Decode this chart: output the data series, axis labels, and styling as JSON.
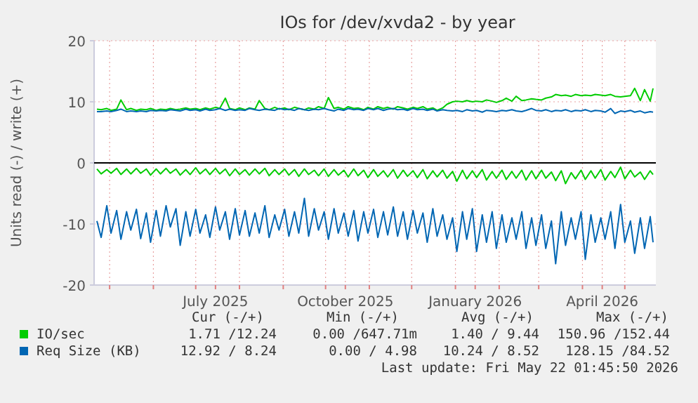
{
  "chart_data": {
    "type": "line",
    "title": "IOs for /dev/xvda2 - by year",
    "ylabel": "Units read (-) / write (+)",
    "x": [
      "2025-04-22",
      "2025-04-25",
      "2025-04-29",
      "2025-05-02",
      "2025-05-06",
      "2025-05-09",
      "2025-05-13",
      "2025-05-16",
      "2025-05-20",
      "2025-05-23",
      "2025-05-27",
      "2025-05-30",
      "2025-06-03",
      "2025-06-06",
      "2025-06-10",
      "2025-06-13",
      "2025-06-17",
      "2025-06-20",
      "2025-06-24",
      "2025-06-27",
      "2025-07-01",
      "2025-07-04",
      "2025-07-08",
      "2025-07-11",
      "2025-07-15",
      "2025-07-18",
      "2025-07-22",
      "2025-07-25",
      "2025-07-29",
      "2025-08-01",
      "2025-08-05",
      "2025-08-08",
      "2025-08-12",
      "2025-08-15",
      "2025-08-19",
      "2025-08-22",
      "2025-08-26",
      "2025-08-29",
      "2025-09-02",
      "2025-09-05",
      "2025-09-09",
      "2025-09-12",
      "2025-09-16",
      "2025-09-19",
      "2025-09-23",
      "2025-09-26",
      "2025-09-30",
      "2025-10-03",
      "2025-10-07",
      "2025-10-10",
      "2025-10-14",
      "2025-10-17",
      "2025-10-21",
      "2025-10-24",
      "2025-10-28",
      "2025-10-31",
      "2025-11-04",
      "2025-11-07",
      "2025-11-11",
      "2025-11-14",
      "2025-11-18",
      "2025-11-21",
      "2025-11-25",
      "2025-11-28",
      "2025-12-02",
      "2025-12-05",
      "2025-12-09",
      "2025-12-12",
      "2025-12-16",
      "2025-12-19",
      "2025-12-23",
      "2025-12-26",
      "2025-12-30",
      "2026-01-02",
      "2026-01-06",
      "2026-01-09",
      "2026-01-13",
      "2026-01-16",
      "2026-01-20",
      "2026-01-23",
      "2026-01-27",
      "2026-01-30",
      "2026-02-03",
      "2026-02-06",
      "2026-02-10",
      "2026-02-13",
      "2026-02-17",
      "2026-02-20",
      "2026-02-24",
      "2026-02-27",
      "2026-03-03",
      "2026-03-06",
      "2026-03-10",
      "2026-03-13",
      "2026-03-17",
      "2026-03-20",
      "2026-03-24",
      "2026-03-27",
      "2026-03-31",
      "2026-04-03",
      "2026-04-07",
      "2026-04-10",
      "2026-04-14",
      "2026-04-17",
      "2026-04-21",
      "2026-04-24",
      "2026-04-28",
      "2026-05-01",
      "2026-05-05",
      "2026-05-08",
      "2026-05-12",
      "2026-05-15",
      "2026-05-19",
      "2026-05-21"
    ],
    "series": [
      {
        "name": "IO/sec",
        "color": "#00cc00",
        "values": [
          8.8,
          8.7,
          8.9,
          8.6,
          8.8,
          10.3,
          8.7,
          8.9,
          8.6,
          8.8,
          8.7,
          8.9,
          8.6,
          8.8,
          8.7,
          8.9,
          8.7,
          8.8,
          9.0,
          8.8,
          8.9,
          8.7,
          9.0,
          8.8,
          9.1,
          8.9,
          10.6,
          8.9,
          8.7,
          9.0,
          8.7,
          9.0,
          8.8,
          10.2,
          8.9,
          8.7,
          9.1,
          8.8,
          9.0,
          8.7,
          9.1,
          8.9,
          8.7,
          9.0,
          8.8,
          9.2,
          8.9,
          10.7,
          8.9,
          9.1,
          8.8,
          9.2,
          8.9,
          9.0,
          8.7,
          9.1,
          8.8,
          9.2,
          8.9,
          9.1,
          8.8,
          9.2,
          9.0,
          8.8,
          9.1,
          8.9,
          9.2,
          8.8,
          9.0,
          8.6,
          9.0,
          9.6,
          10.0,
          10.1,
          10.0,
          10.2,
          10.0,
          10.1,
          10.0,
          10.3,
          10.1,
          9.9,
          10.2,
          10.6,
          10.1,
          10.9,
          10.2,
          10.3,
          10.5,
          10.4,
          10.3,
          10.6,
          10.8,
          11.2,
          11.0,
          11.1,
          10.9,
          11.2,
          11.0,
          11.1,
          11.0,
          11.2,
          11.1,
          11.0,
          11.2,
          10.9,
          10.8,
          10.9,
          11.0,
          12.2,
          10.2,
          12.0,
          10.1,
          12.2
        ]
      },
      {
        "color": "#00cc00",
        "values": [
          -1.0,
          -1.8,
          -1.1,
          -1.7,
          -0.9,
          -1.9,
          -1.0,
          -1.8,
          -0.9,
          -1.7,
          -1.0,
          -2.0,
          -1.0,
          -1.8,
          -0.9,
          -1.7,
          -1.0,
          -2.0,
          -1.1,
          -1.9,
          -0.8,
          -1.8,
          -1.0,
          -1.9,
          -0.9,
          -1.8,
          -1.0,
          -2.1,
          -1.0,
          -1.9,
          -1.1,
          -2.0,
          -1.0,
          -1.8,
          -0.9,
          -2.1,
          -1.1,
          -1.9,
          -1.0,
          -2.0,
          -1.1,
          -2.2,
          -1.0,
          -1.9,
          -1.2,
          -2.1,
          -1.0,
          -2.2,
          -1.1,
          -2.0,
          -1.2,
          -2.3,
          -1.0,
          -2.1,
          -1.2,
          -2.4,
          -1.1,
          -2.2,
          -1.3,
          -2.3,
          -1.1,
          -2.5,
          -1.2,
          -2.2,
          -1.3,
          -2.4,
          -1.1,
          -2.6,
          -1.3,
          -2.3,
          -1.2,
          -2.5,
          -1.4,
          -3.0,
          -1.2,
          -2.6,
          -1.3,
          -2.4,
          -1.1,
          -2.8,
          -1.4,
          -2.5,
          -1.2,
          -2.7,
          -1.4,
          -2.5,
          -1.2,
          -2.8,
          -1.3,
          -2.6,
          -1.2,
          -2.5,
          -1.5,
          -2.9,
          -1.3,
          -3.4,
          -1.6,
          -2.6,
          -1.2,
          -2.7,
          -1.3,
          -2.5,
          -1.1,
          -2.8,
          -1.4,
          -2.4,
          -0.7,
          -2.6,
          -1.2,
          -2.3,
          -1.5,
          -2.7,
          -1.3,
          -1.9
        ]
      },
      {
        "name": "Req Size (KB)",
        "color": "#0066b3",
        "values": [
          8.4,
          8.4,
          8.5,
          8.4,
          8.6,
          8.8,
          8.4,
          8.5,
          8.4,
          8.5,
          8.4,
          8.6,
          8.5,
          8.6,
          8.5,
          8.7,
          8.6,
          8.5,
          8.8,
          8.6,
          8.7,
          8.5,
          8.8,
          8.6,
          8.7,
          8.9,
          8.6,
          8.8,
          8.6,
          8.7,
          8.6,
          8.9,
          8.7,
          8.6,
          8.8,
          8.7,
          8.6,
          8.9,
          8.7,
          8.8,
          8.6,
          8.9,
          8.7,
          8.6,
          8.8,
          8.7,
          8.9,
          8.7,
          8.5,
          8.8,
          8.6,
          8.9,
          8.7,
          8.8,
          8.6,
          8.9,
          8.7,
          8.9,
          8.6,
          8.8,
          8.9,
          8.7,
          8.8,
          8.6,
          8.9,
          8.7,
          8.8,
          8.6,
          8.8,
          8.5,
          8.7,
          8.6,
          8.5,
          8.6,
          8.4,
          8.7,
          8.5,
          8.6,
          8.3,
          8.6,
          8.5,
          8.4,
          8.6,
          8.5,
          8.7,
          8.5,
          8.4,
          8.6,
          8.9,
          8.6,
          8.5,
          8.7,
          8.4,
          8.6,
          8.5,
          8.7,
          8.4,
          8.6,
          8.5,
          8.7,
          8.4,
          8.6,
          8.5,
          8.3,
          8.9,
          8.1,
          8.5,
          8.4,
          8.6,
          8.3,
          8.5,
          8.2,
          8.4,
          8.3
        ]
      },
      {
        "color": "#0066b3",
        "values": [
          -9.5,
          -12.2,
          -7.0,
          -11.5,
          -7.8,
          -12.5,
          -8.0,
          -11.0,
          -7.6,
          -12.4,
          -8.2,
          -13.0,
          -7.8,
          -12.0,
          -7.0,
          -10.5,
          -7.5,
          -13.5,
          -8.0,
          -12.0,
          -7.6,
          -11.5,
          -8.5,
          -12.2,
          -7.2,
          -11.0,
          -8.0,
          -12.5,
          -7.5,
          -11.8,
          -7.8,
          -12.0,
          -8.2,
          -11.5,
          -7.0,
          -12.2,
          -8.5,
          -11.0,
          -7.6,
          -12.0,
          -8.0,
          -11.5,
          -5.8,
          -12.0,
          -7.5,
          -11.0,
          -8.0,
          -12.5,
          -7.5,
          -11.5,
          -8.2,
          -12.0,
          -7.8,
          -12.8,
          -8.0,
          -11.5,
          -7.6,
          -12.2,
          -8.0,
          -11.8,
          -7.2,
          -12.0,
          -8.0,
          -12.5,
          -7.8,
          -11.5,
          -8.2,
          -13.0,
          -7.5,
          -12.0,
          -8.5,
          -12.5,
          -9.0,
          -14.5,
          -8.0,
          -12.5,
          -7.5,
          -14.5,
          -8.5,
          -13.0,
          -8.0,
          -14.0,
          -8.5,
          -13.0,
          -9.0,
          -12.5,
          -8.0,
          -14.0,
          -9.0,
          -13.5,
          -8.5,
          -14.0,
          -9.5,
          -16.5,
          -8.0,
          -13.5,
          -9.0,
          -12.5,
          -8.0,
          -15.8,
          -8.5,
          -13.0,
          -9.0,
          -12.5,
          -8.0,
          -14.0,
          -6.8,
          -13.0,
          -9.5,
          -14.8,
          -9.0,
          -14.0,
          -8.8,
          -13.0
        ]
      }
    ],
    "xlim": [
      "2025-04-20",
      "2026-05-23"
    ],
    "xticks": [
      {
        "value": "2025-05-01",
        "label": null
      },
      {
        "value": "2025-06-01",
        "label": null
      },
      {
        "value": "2025-07-01",
        "label": null
      },
      {
        "value": "2025-07-15",
        "label": "July 2025"
      },
      {
        "value": "2025-08-01",
        "label": null
      },
      {
        "value": "2025-09-01",
        "label": null
      },
      {
        "value": "2025-10-01",
        "label": null
      },
      {
        "value": "2025-10-15",
        "label": "October 2025"
      },
      {
        "value": "2025-11-01",
        "label": null
      },
      {
        "value": "2025-12-01",
        "label": null
      },
      {
        "value": "2026-01-01",
        "label": null
      },
      {
        "value": "2026-01-15",
        "label": "January 2026"
      },
      {
        "value": "2026-02-01",
        "label": null
      },
      {
        "value": "2026-03-01",
        "label": null
      },
      {
        "value": "2026-04-01",
        "label": null
      },
      {
        "value": "2026-04-15",
        "label": "April 2026"
      },
      {
        "value": "2026-05-01",
        "label": null
      }
    ],
    "ylim": [
      -20,
      20
    ],
    "yticks": [
      -20,
      -10,
      0,
      10,
      20
    ],
    "grid": true,
    "legend": "bottom",
    "marker": "none",
    "line_style": "solid",
    "annotations": [
      "Cur (-/+)",
      "Min (-/+)",
      "Avg (-/+)",
      "Max (-/+)",
      "1.71 /12.24",
      "0.00 /647.71m",
      "1.40 / 9.44",
      "150.96 /152.44",
      "12.92 / 8.24",
      "0.00 / 4.98",
      "10.24 / 8.52",
      "128.15 /84.52",
      "Last update: Fri May 22 01:45:50 2026"
    ]
  }
}
